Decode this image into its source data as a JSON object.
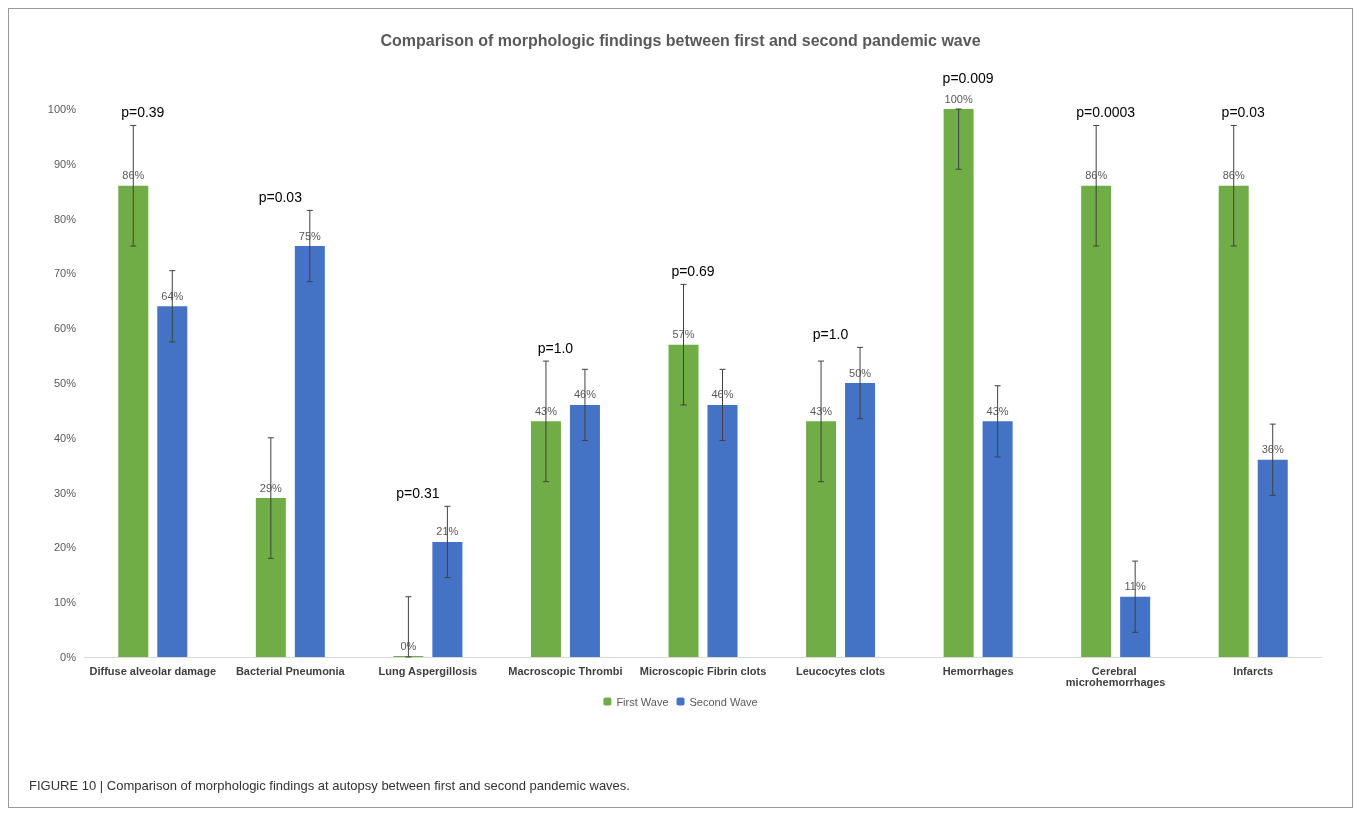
{
  "chart_data": {
    "type": "bar",
    "title": "Comparison of morphologic findings between first and second pandemic wave",
    "categories": [
      "Diffuse alveolar damage",
      "Bacterial Pneumonia",
      "Lung Aspergillosis",
      "Macroscopic Thrombi",
      "Microscopic Fibrin clots",
      "Leucocytes clots",
      "Hemorrhages",
      "Cerebral microhemorrhages",
      "Infarcts"
    ],
    "series": [
      {
        "name": "First Wave",
        "color": "#70ad47",
        "values": [
          86,
          29,
          0,
          43,
          57,
          43,
          100,
          86,
          86
        ],
        "errors": [
          11,
          11,
          [
            0,
            11
          ],
          11,
          11,
          11,
          [
            89,
            100
          ],
          11,
          11
        ],
        "value_labels": [
          "86%",
          "29%",
          "0%",
          "43%",
          "57%",
          "43%",
          "100%",
          "86%",
          "86%"
        ]
      },
      {
        "name": "Second Wave",
        "color": "#4472c4",
        "values": [
          64,
          75,
          21,
          46,
          46,
          50,
          43,
          11,
          36
        ],
        "errors": [
          6.5,
          6.5,
          6.5,
          6.5,
          6.5,
          6.5,
          6.5,
          6.5,
          6.5
        ],
        "value_labels": [
          "64%",
          "75%",
          "21%",
          "46%",
          "46%",
          "50%",
          "43%",
          "11%",
          "36%"
        ]
      }
    ],
    "ylim": [
      0,
      100
    ],
    "yticks": [
      {
        "value": 0,
        "label": "0%"
      },
      {
        "value": 10,
        "label": "10%"
      },
      {
        "value": 20,
        "label": "20%"
      },
      {
        "value": 30,
        "label": "30%"
      },
      {
        "value": 40,
        "label": "40%"
      },
      {
        "value": 50,
        "label": "50%"
      },
      {
        "value": 60,
        "label": "60%"
      },
      {
        "value": 70,
        "label": "70%"
      },
      {
        "value": 80,
        "label": "80%"
      },
      {
        "value": 90,
        "label": "90%"
      },
      {
        "value": 100,
        "label": "100%"
      }
    ],
    "grid": false,
    "legend": "bottom",
    "annotations": [
      "p=0.39",
      "p=0.03",
      "p=0.31",
      "p=1.0",
      "p=0.69",
      "p=1.0",
      "p=0.009",
      "p=0.0003",
      "p=0.03",
      "FIGURE 10 | Comparison of morphologic findings at autopsy between first and second pandemic waves."
    ]
  }
}
